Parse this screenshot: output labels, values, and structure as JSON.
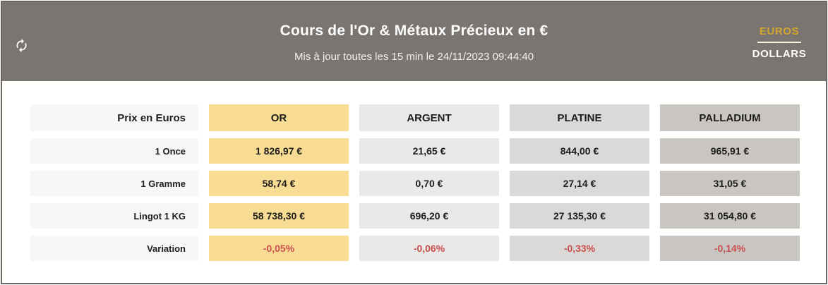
{
  "header": {
    "title": "Cours de l'Or & Métaux Précieux en €",
    "subtitle": "Mis à jour toutes les 15 min le 24/11/2023 09:44:40",
    "currency_toggle": {
      "active": "EUROS",
      "inactive": "DOLLARS"
    },
    "refresh_icon": "refresh-sync-arrows"
  },
  "colors": {
    "header_bg": "#7a7571",
    "border": "#6b6662",
    "accent_gold_text": "#d0a42f",
    "negative_red": "#c94f4e",
    "label_column_bg": "#f8f7f6",
    "or_bg": "#f8dc94",
    "argent_bg": "#ebe9e8",
    "platine_bg": "#dbd9d7",
    "palladium_bg": "#c8c5c3"
  },
  "table": {
    "corner_label": "Prix en Euros",
    "columns": [
      {
        "key": "or",
        "label": "OR",
        "bg": "#f8dc94"
      },
      {
        "key": "argent",
        "label": "ARGENT",
        "bg": "#ebe9e8"
      },
      {
        "key": "platine",
        "label": "PLATINE",
        "bg": "#dbd9d7"
      },
      {
        "key": "palladium",
        "label": "PALLADIUM",
        "bg": "#c8c5c3"
      }
    ],
    "rows": [
      {
        "label": "1 Once",
        "variation": false,
        "values": [
          "1 826,97 €",
          "21,65 €",
          "844,00 €",
          "965,91 €"
        ]
      },
      {
        "label": "1 Gramme",
        "variation": false,
        "values": [
          "58,74 €",
          "0,70 €",
          "27,14 €",
          "31,05 €"
        ]
      },
      {
        "label": "Lingot 1 KG",
        "variation": false,
        "values": [
          "58 738,30 €",
          "696,20 €",
          "27 135,30 €",
          "31 054,80 €"
        ]
      },
      {
        "label": "Variation",
        "variation": true,
        "values": [
          "-0,05%",
          "-0,06%",
          "-0,33%",
          "-0,14%"
        ]
      }
    ]
  }
}
